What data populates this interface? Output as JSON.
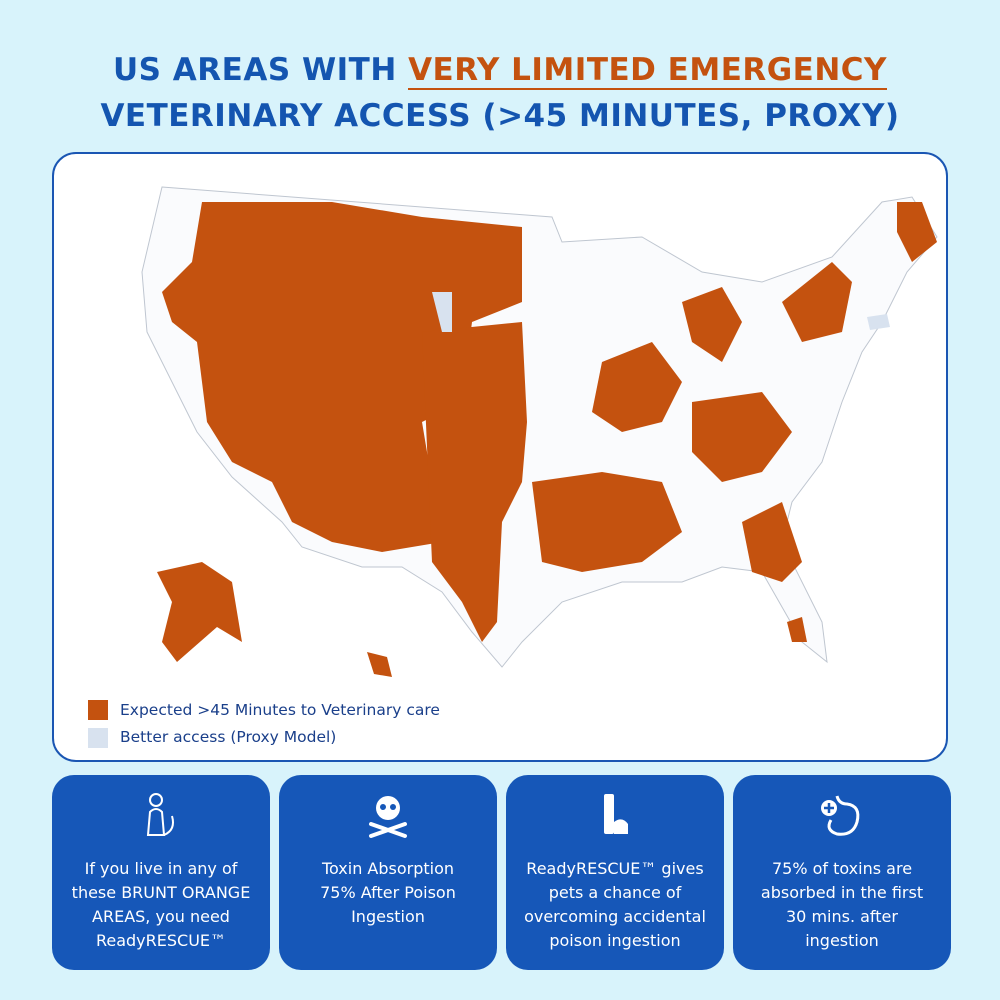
{
  "header": {
    "title_line1_prefix": "US AREAS WITH",
    "title_line1_highlight": "VERY LIMITED EMERGENCY",
    "title_line2": "VETERINARY ACCESS (>45 MINUTES, PROXY)"
  },
  "legend": [
    {
      "label": "Expected >45 Minutes to Veterinary care",
      "color": "#c4520f"
    },
    {
      "label": "Better access (Proxy Model)",
      "color": "#d8e2ef"
    }
  ],
  "cards": [
    {
      "lines": [
        "If you live in any of",
        "these BRUNT ORANGE",
        "AREAS, you need",
        "ReadyRESCUE™"
      ]
    },
    {
      "lines": [
        "Toxin Absorption",
        "75% After Poison",
        "Ingestion"
      ]
    },
    {
      "lines": [
        "ReadyRESCUE™ gives",
        "pets a chance of",
        "overcoming accidental",
        "poison ingestion"
      ]
    },
    {
      "lines": [
        "75% of toxins are",
        "absorbed in the first",
        "30 mins. after",
        "ingestion"
      ]
    }
  ]
}
